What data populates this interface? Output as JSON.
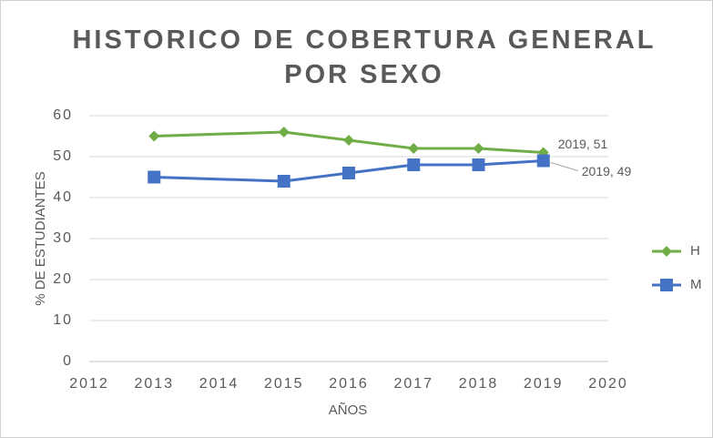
{
  "chart_data": {
    "type": "line",
    "title": "HISTORICO DE COBERTURA GENERAL POR SEXO",
    "x_label": "AÑOS",
    "y_label": "% DE ESTUDIANTES",
    "x": [
      2013,
      2015,
      2016,
      2017,
      2018,
      2019
    ],
    "series": [
      {
        "name": "H",
        "color": "#70ad47",
        "marker": "diamond",
        "values": [
          55,
          56,
          54,
          52,
          52,
          51
        ],
        "value_labels": [
          null,
          null,
          null,
          null,
          null,
          "2019, 51"
        ]
      },
      {
        "name": "M",
        "color": "#4472c4",
        "marker": "square",
        "values": [
          45,
          44,
          46,
          48,
          48,
          49
        ],
        "value_labels": [
          null,
          null,
          null,
          null,
          null,
          "2019, 49"
        ]
      }
    ],
    "xlim": [
      2012,
      2020
    ],
    "xticks": [
      2012,
      2013,
      2014,
      2015,
      2016,
      2017,
      2018,
      2019,
      2020
    ],
    "ylim": [
      0,
      60
    ],
    "yticks": [
      0,
      10,
      20,
      30,
      40,
      50,
      60
    ],
    "grid": true,
    "legend": "right"
  }
}
